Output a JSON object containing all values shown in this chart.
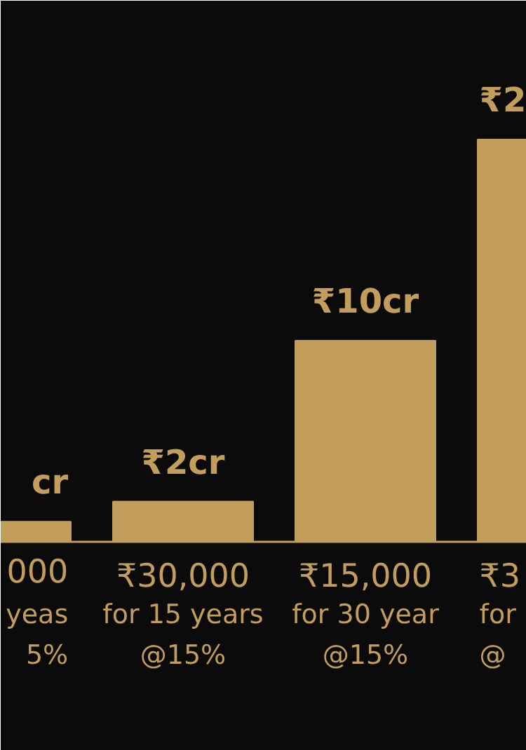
{
  "chart_data": {
    "type": "bar",
    "categories": [
      "000\nyeas\n5%",
      "₹30,000\nfor 15 years\n@15%",
      "₹15,000\nfor 30 year\n@15%",
      "₹3\nfor\n@"
    ],
    "values": [
      1,
      2,
      10,
      20
    ],
    "value_labels": [
      "cr",
      "₹2cr",
      "₹10cr",
      null
    ],
    "annotations": [
      {
        "text": "₹2",
        "x": "₹3\nfor\n@",
        "y": 20
      }
    ],
    "color": "#c29d5b",
    "grid": false
  }
}
